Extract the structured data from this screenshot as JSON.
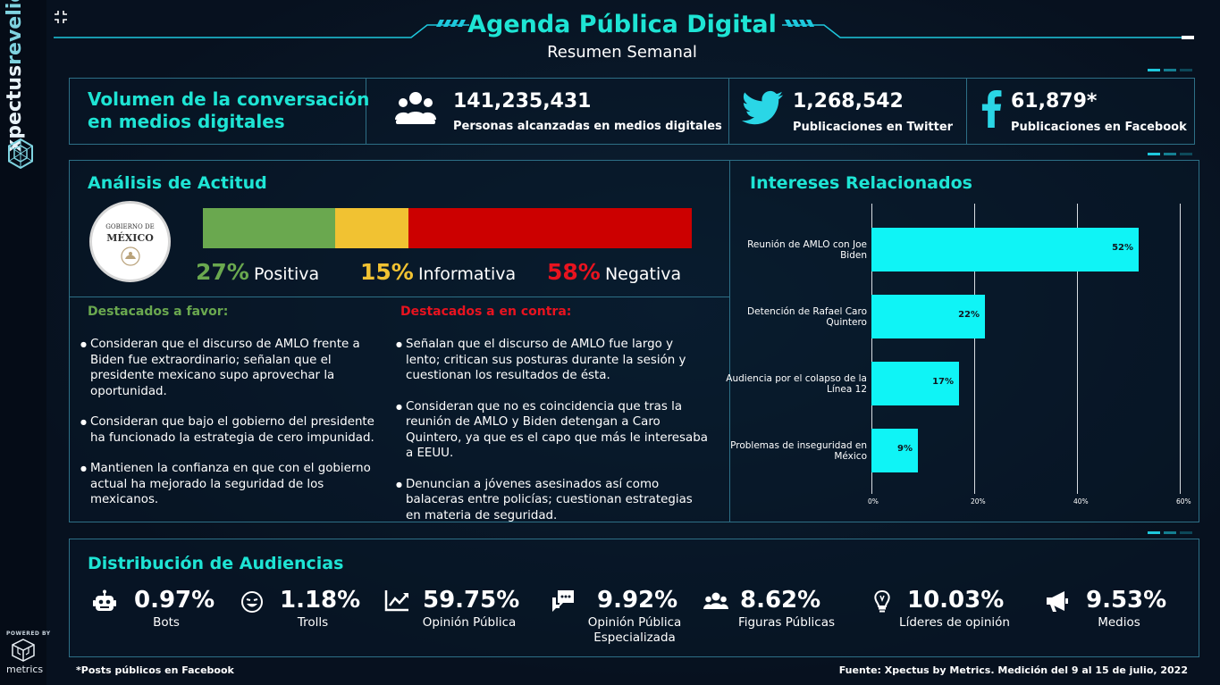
{
  "brand": {
    "name_part1": "xpectus",
    "name_part2": "revelio",
    "powered_by": "POWERED BY",
    "metrics_name": "metrics"
  },
  "header": {
    "title": "Agenda Pública Digital",
    "subtitle": "Resumen Semanal"
  },
  "volume": {
    "title_line1": "Volumen de la conversación",
    "title_line2": "en medios digitales",
    "stats": [
      {
        "value": "141,235,431",
        "label": "Personas alcanzadas en medios digitales",
        "icon": "users-icon"
      },
      {
        "value": "1,268,542",
        "label": "Publicaciones en Twitter",
        "icon": "twitter-icon"
      },
      {
        "value": "61,879*",
        "label": "Publicaciones en Facebook",
        "icon": "facebook-icon"
      }
    ]
  },
  "attitude": {
    "title": "Análisis de Actitud",
    "logo_text_line1": "GOBIERNO DE",
    "logo_text_line2": "MÉXICO",
    "segments": [
      {
        "pct": "27%",
        "label": "Positiva",
        "value": 27,
        "color": "#6aa84f"
      },
      {
        "pct": "15%",
        "label": "Informativa",
        "value": 15,
        "color": "#f1c232"
      },
      {
        "pct": "58%",
        "label": "Negativa",
        "value": 58,
        "color": "#cc0000"
      }
    ],
    "favor_title": "Destacados a favor:",
    "favor_items": [
      "Consideran que el discurso de AMLO frente a Biden fue extraordinario; señalan que el presidente mexicano supo aprovechar la oportunidad.",
      "Consideran que bajo el gobierno del presidente ha funcionado la estrategia de cero impunidad.",
      "Mantienen la confianza en que con el gobierno actual ha mejorado la seguridad de los mexicanos."
    ],
    "contra_title": "Destacados a en contra:",
    "contra_items": [
      "Señalan que el discurso de AMLO fue largo y lento; critican sus posturas durante la sesión y cuestionan los resultados de ésta.",
      "Consideran que no es coincidencia que tras la reunión de AMLO y Biden detengan a Caro Quintero, ya que es el capo que más le interesaba a EEUU.",
      "Denuncian a jóvenes asesinados así como balaceras entre policías; cuestionan estrategias en materia de seguridad."
    ],
    "colors": {
      "favor": "#6aa84f",
      "contra": "#e8131f"
    }
  },
  "interests": {
    "title": "Intereses Relacionados"
  },
  "chart_data": {
    "type": "bar",
    "orientation": "horizontal",
    "categories": [
      "Reunión de AMLO con Joe Biden",
      "Detención de Rafael Caro Quintero",
      "Audiencia por el colapso de la Línea 12",
      "Problemas de inseguridad en México"
    ],
    "values": [
      52,
      22,
      17,
      9
    ],
    "value_labels": [
      "52%",
      "22%",
      "17%",
      "9%"
    ],
    "xlim": [
      0,
      60
    ],
    "ticks": [
      "0%",
      "20%",
      "40%",
      "60%"
    ],
    "grid": true,
    "bar_color": "#0ff4f6"
  },
  "audience": {
    "title": "Distribución de Audiencias",
    "items": [
      {
        "pct": "0.97%",
        "label": "Bots",
        "icon": "robot-icon"
      },
      {
        "pct": "1.18%",
        "label": "Trolls",
        "icon": "troll-face-icon"
      },
      {
        "pct": "59.75%",
        "label": "Opinión Pública",
        "icon": "trend-chart-icon"
      },
      {
        "pct": "9.92%",
        "label": "Opinión Pública Especializada",
        "icon": "chat-bubbles-icon"
      },
      {
        "pct": "8.62%",
        "label": "Figuras Públicas",
        "icon": "group-icon"
      },
      {
        "pct": "10.03%",
        "label": "Líderes de opinión",
        "icon": "lightbulb-icon"
      },
      {
        "pct": "9.53%",
        "label": "Medios",
        "icon": "megaphone-icon"
      }
    ]
  },
  "footer": {
    "note": "*Posts públicos en Facebook",
    "source": "Fuente: Xpectus by Metrics. Medición del 9 al 15 de julio, 2022"
  }
}
